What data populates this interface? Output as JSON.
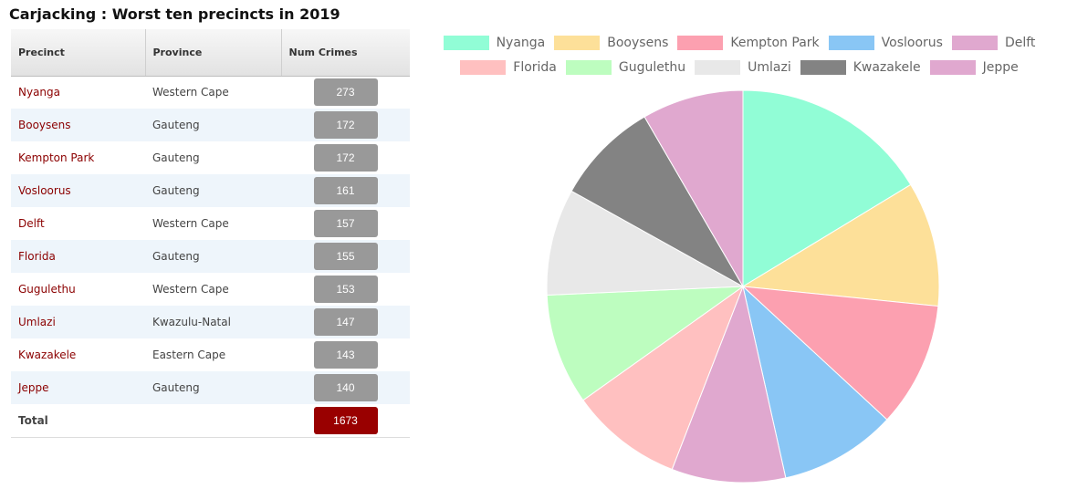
{
  "title": "Carjacking : Worst ten precincts in 2019",
  "table": {
    "headers": {
      "precinct": "Precinct",
      "province": "Province",
      "num_crimes": "Num Crimes"
    },
    "rows": [
      {
        "precinct": "Nyanga",
        "province": "Western Cape",
        "num": "273"
      },
      {
        "precinct": "Booysens",
        "province": "Gauteng",
        "num": "172"
      },
      {
        "precinct": "Kempton Park",
        "province": "Gauteng",
        "num": "172"
      },
      {
        "precinct": "Vosloorus",
        "province": "Gauteng",
        "num": "161"
      },
      {
        "precinct": "Delft",
        "province": "Western Cape",
        "num": "157"
      },
      {
        "precinct": "Florida",
        "province": "Gauteng",
        "num": "155"
      },
      {
        "precinct": "Gugulethu",
        "province": "Western Cape",
        "num": "153"
      },
      {
        "precinct": "Umlazi",
        "province": "Kwazulu-Natal",
        "num": "147"
      },
      {
        "precinct": "Kwazakele",
        "province": "Eastern Cape",
        "num": "143"
      },
      {
        "precinct": "Jeppe",
        "province": "Gauteng",
        "num": "140"
      }
    ],
    "total_label": "Total",
    "total_value": "1673",
    "badge_color": "#999999",
    "total_badge_color": "#990000",
    "precinct_text_color": "#8b0000"
  },
  "chart_data": {
    "type": "pie",
    "legend_position": "top",
    "categories": [
      "Nyanga",
      "Booysens",
      "Kempton Park",
      "Vosloorus",
      "Delft",
      "Florida",
      "Gugulethu",
      "Umlazi",
      "Kwazakele",
      "Jeppe"
    ],
    "values": [
      273,
      172,
      172,
      161,
      157,
      155,
      153,
      147,
      143,
      140
    ],
    "colors": [
      "#91fdd6",
      "#fde099",
      "#fca0b0",
      "#89c6f5",
      "#e0a8cf",
      "#ffc0c0",
      "#bdfdbf",
      "#e8e8e8",
      "#838383",
      "#e0a8cf"
    ]
  }
}
